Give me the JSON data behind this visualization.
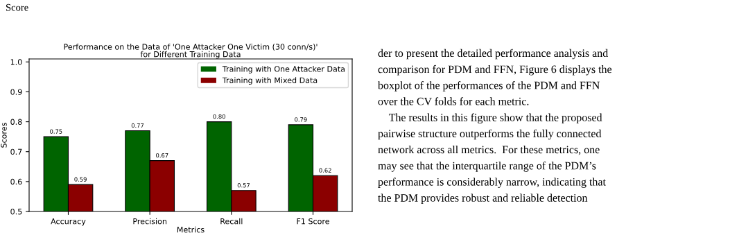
{
  "chart_data": {
    "type": "bar",
    "title": "Performance on the Data of 'One Attacker One Victim (30 conn/s)'\nfor Different Training Data",
    "xlabel": "Metrics",
    "ylabel": "Scores",
    "categories": [
      "Accuracy",
      "Precision",
      "Recall",
      "F1 Score"
    ],
    "series": [
      {
        "name": "Training with One Attacker Data",
        "color": "#006400",
        "values": [
          0.75,
          0.77,
          0.8,
          0.79
        ],
        "value_labels": [
          "0.75",
          "0.77",
          "0.80",
          "0.79"
        ]
      },
      {
        "name": "Training with Mixed Data",
        "color": "#8b0000",
        "values": [
          0.59,
          0.67,
          0.57,
          0.62
        ],
        "value_labels": [
          "0.59",
          "0.67",
          "0.57",
          "0.62"
        ]
      }
    ],
    "ylim": [
      0.5,
      1.01
    ],
    "yticks": [
      0.5,
      0.6,
      0.7,
      0.8,
      0.9,
      {
        "value": 1.0,
        "label": "1.0"
      }
    ],
    "legend": "top right",
    "grid": false,
    "annotations": [
      "Score",
      "der to present the detailed performance analysis and",
      "comparison for PDM and FFN, Figure 6 displays the",
      "boxplot of the performances of the PDM and FFN",
      "over the CV folds for each metric.",
      "    The results in this figure show that the proposed",
      "pairwise structure outperforms the fully connected",
      "network across all metrics.  For these metrics, one",
      "may see that the interquartile range of the PDM’s",
      "performance is considerably narrow, indicating that",
      "the PDM provides robust and reliable detection"
    ]
  }
}
